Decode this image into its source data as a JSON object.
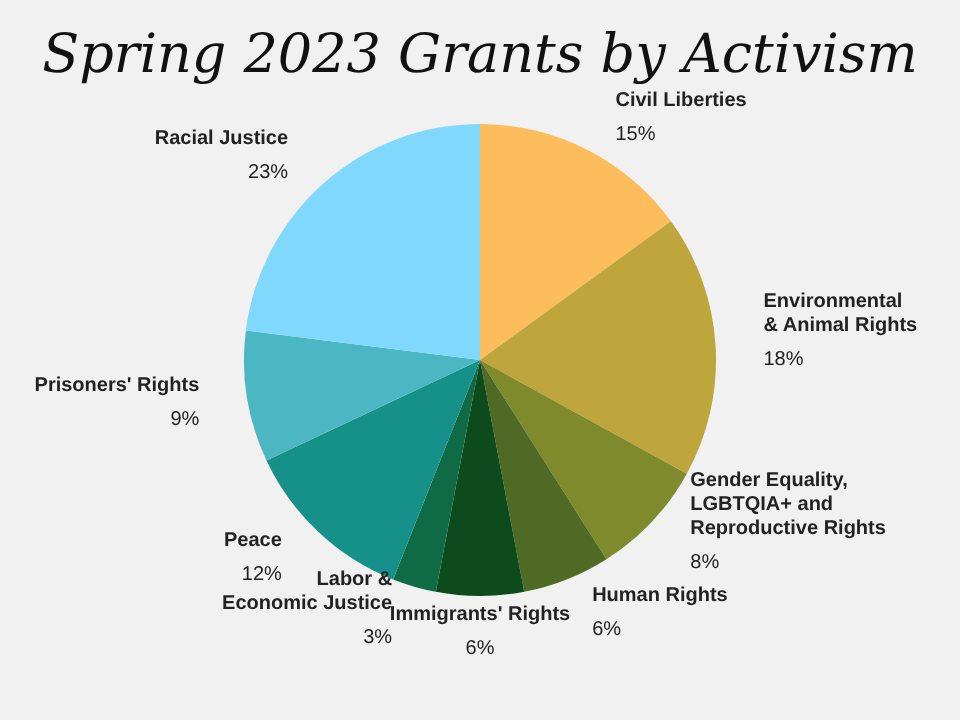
{
  "chart_data": {
    "type": "pie",
    "title": "Spring 2023 Grants by Activism",
    "categories": [
      "Civil Liberties",
      "Environmental\n& Animal Rights",
      "Gender Equality,\nLGBTQIA+ and\nReproductive Rights",
      "Human Rights",
      "Immigrants' Rights",
      "Labor &\nEconomic Justice",
      "Peace",
      "Prisoners' Rights",
      "Racial Justice"
    ],
    "values": [
      15,
      18,
      8,
      6,
      6,
      3,
      12,
      9,
      23
    ],
    "value_labels": [
      "15%",
      "18%",
      "8%",
      "6%",
      "6%",
      "3%",
      "12%",
      "9%",
      "23%"
    ],
    "colors": [
      "#fdbd5c",
      "#bea63c",
      "#7e8a2c",
      "#4f6a24",
      "#0d4a1c",
      "#0f6a46",
      "#16918a",
      "#4bb7c3",
      "#80d9fd"
    ]
  }
}
